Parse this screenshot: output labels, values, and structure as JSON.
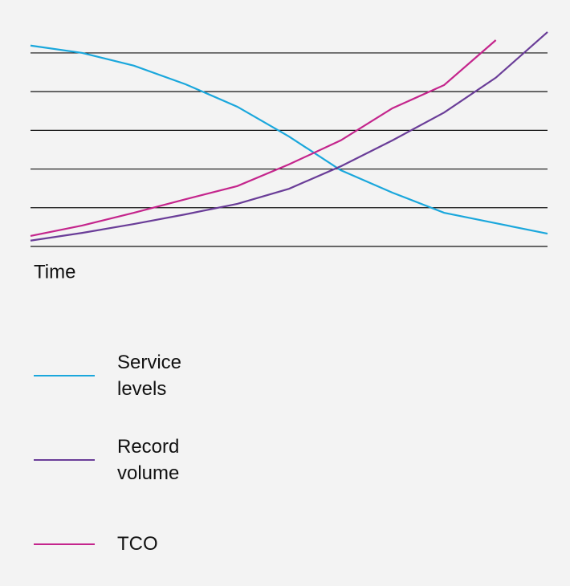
{
  "chart_data": {
    "type": "line",
    "xlabel": "Time",
    "x": [
      0,
      1,
      2,
      3,
      4,
      5,
      6,
      7,
      8,
      9,
      10
    ],
    "xlim": [
      0,
      10
    ],
    "ylim": [
      0,
      5.6
    ],
    "yticks": [
      0,
      1,
      2,
      3,
      4,
      5
    ],
    "grid": true,
    "legend": "bottom",
    "series": [
      {
        "name": "Service levels",
        "color": "#1aa7dc",
        "values": [
          5.19,
          5.0,
          4.67,
          4.19,
          3.61,
          2.84,
          1.97,
          1.39,
          0.87,
          0.6,
          0.33
        ]
      },
      {
        "name": "Record volume",
        "color": "#6a3d98",
        "values": [
          0.15,
          0.35,
          0.58,
          0.83,
          1.1,
          1.49,
          2.07,
          2.74,
          3.46,
          4.36,
          5.54
        ]
      },
      {
        "name": "TCO",
        "color": "#c4258c",
        "values": [
          0.27,
          0.54,
          0.87,
          1.22,
          1.56,
          2.12,
          2.74,
          3.57,
          4.17,
          5.33,
          null
        ]
      }
    ]
  }
}
